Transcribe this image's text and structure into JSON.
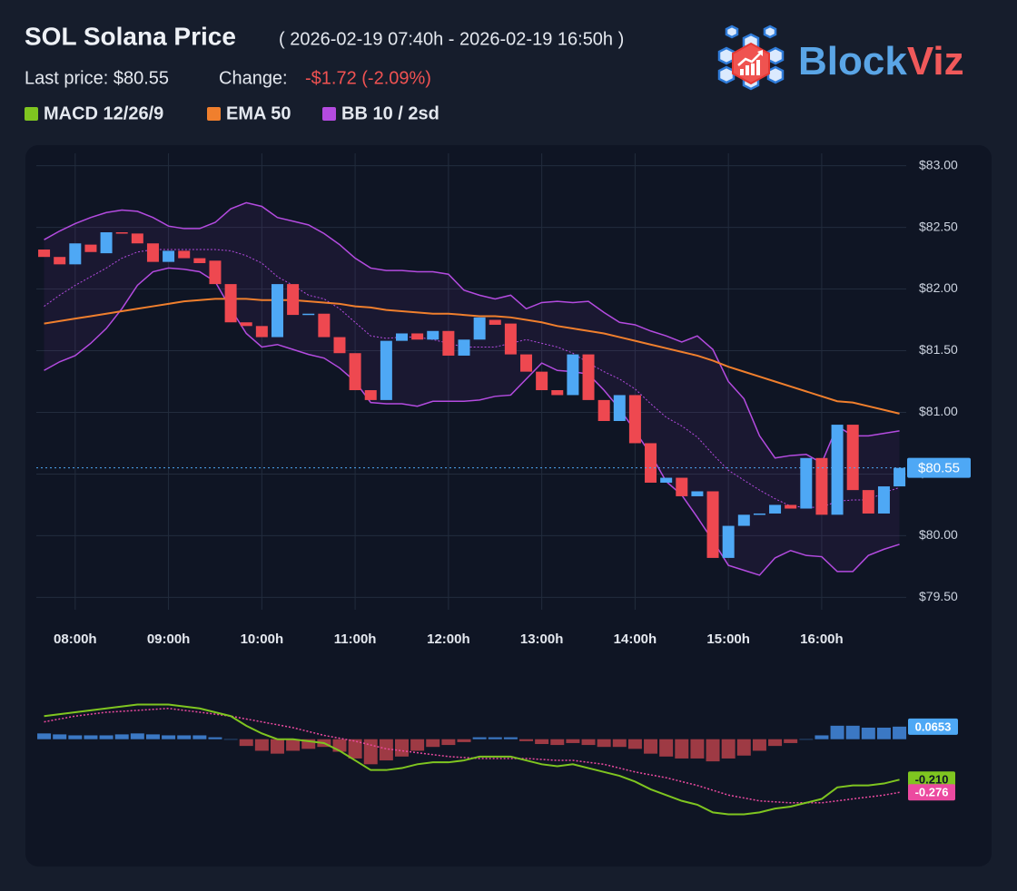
{
  "header": {
    "title": "SOL Solana Price",
    "range": "( 2026-02-19 07:40h - 2026-02-19 16:50h )",
    "last_price": "Last price: $80.55",
    "change_label": "Change:",
    "change": "-$1.72 (-2.09%)"
  },
  "logo": {
    "part1": "Block",
    "part2": "Viz"
  },
  "chart_data": [
    {
      "type": "candlestick",
      "x": [
        460,
        470,
        480,
        490,
        500,
        510,
        520,
        530,
        540,
        550,
        560,
        570,
        580,
        590,
        600,
        610,
        620,
        630,
        640,
        650,
        660,
        670,
        680,
        690,
        700,
        710,
        720,
        730,
        740,
        750,
        760,
        770,
        780,
        790,
        800,
        810,
        820,
        830,
        840,
        850,
        860,
        870,
        880,
        890,
        900,
        910,
        920,
        930,
        940,
        950,
        960,
        970,
        980,
        990,
        1000,
        1010
      ],
      "xlim": [
        455,
        1012
      ],
      "xticks": [
        {
          "value": 480,
          "label": "08:00h"
        },
        {
          "value": 540,
          "label": "09:00h"
        },
        {
          "value": 600,
          "label": "10:00h"
        },
        {
          "value": 660,
          "label": "11:00h"
        },
        {
          "value": 720,
          "label": "12:00h"
        },
        {
          "value": 780,
          "label": "13:00h"
        },
        {
          "value": 840,
          "label": "14:00h"
        },
        {
          "value": 900,
          "label": "15:00h"
        },
        {
          "value": 960,
          "label": "16:00h"
        }
      ],
      "ylim": [
        79.4,
        83.1
      ],
      "yticks": [
        {
          "value": 83,
          "label": "$83.00"
        },
        {
          "value": 82.5,
          "label": "$82.50"
        },
        {
          "value": 82,
          "label": "$82.00"
        },
        {
          "value": 81.5,
          "label": "$81.50"
        },
        {
          "value": 81,
          "label": "$81.00"
        },
        {
          "value": 80.5,
          "label": "$80.50"
        },
        {
          "value": 80,
          "label": "$80.00"
        },
        {
          "value": 79.5,
          "label": "$79.50"
        }
      ],
      "grid": true,
      "up_color": "#4ea8f5",
      "down_color": "#ee4850",
      "open": [
        82.32,
        82.26,
        82.2,
        82.36,
        82.29,
        82.46,
        82.45,
        82.37,
        82.22,
        82.31,
        82.25,
        82.23,
        82.04,
        81.73,
        81.7,
        81.61,
        82.04,
        81.79,
        81.8,
        81.61,
        81.48,
        81.18,
        81.1,
        81.58,
        81.64,
        81.59,
        81.66,
        81.46,
        81.59,
        81.75,
        81.72,
        81.47,
        81.33,
        81.18,
        81.14,
        81.47,
        81.1,
        80.93,
        81.14,
        80.75,
        80.43,
        80.47,
        80.32,
        80.36,
        79.82,
        80.08,
        80.17,
        80.18,
        80.25,
        80.22,
        80.63,
        80.17,
        80.9,
        80.37,
        80.18,
        80.4
      ],
      "close": [
        82.26,
        82.2,
        82.37,
        82.3,
        82.46,
        82.45,
        82.37,
        82.22,
        82.31,
        82.25,
        82.21,
        82.04,
        81.73,
        81.7,
        81.61,
        82.04,
        81.79,
        81.8,
        81.61,
        81.48,
        81.18,
        81.1,
        81.58,
        81.64,
        81.59,
        81.66,
        81.46,
        81.59,
        81.77,
        81.71,
        81.47,
        81.33,
        81.18,
        81.14,
        81.47,
        81.1,
        80.93,
        81.14,
        80.75,
        80.43,
        80.47,
        80.32,
        80.36,
        79.82,
        80.08,
        80.17,
        80.18,
        80.25,
        80.22,
        80.63,
        80.17,
        80.9,
        80.37,
        80.18,
        80.4,
        80.55
      ],
      "ema": {
        "name": "EMA 50",
        "color": "#f07f2d",
        "values": [
          81.72,
          81.74,
          81.76,
          81.78,
          81.8,
          81.82,
          81.84,
          81.86,
          81.88,
          81.9,
          81.91,
          81.92,
          81.92,
          81.92,
          81.91,
          81.91,
          81.91,
          81.9,
          81.89,
          81.88,
          81.86,
          81.85,
          81.83,
          81.82,
          81.81,
          81.8,
          81.8,
          81.79,
          81.78,
          81.78,
          81.77,
          81.75,
          81.73,
          81.7,
          81.68,
          81.66,
          81.64,
          81.61,
          81.58,
          81.55,
          81.52,
          81.49,
          81.46,
          81.42,
          81.37,
          81.33,
          81.29,
          81.25,
          81.21,
          81.17,
          81.13,
          81.09,
          81.08,
          81.05,
          81.02,
          80.99
        ]
      },
      "bollinger": {
        "name": "BB 10 / 2sd",
        "color": "#b44be0",
        "upper": [
          82.4,
          82.47,
          82.53,
          82.58,
          82.62,
          82.64,
          82.63,
          82.58,
          82.51,
          82.49,
          82.49,
          82.54,
          82.65,
          82.7,
          82.67,
          82.58,
          82.55,
          82.52,
          82.45,
          82.36,
          82.25,
          82.17,
          82.15,
          82.15,
          82.14,
          82.14,
          82.12,
          81.99,
          81.95,
          81.92,
          81.95,
          81.84,
          81.89,
          81.9,
          81.89,
          81.9,
          81.81,
          81.73,
          81.71,
          81.66,
          81.62,
          81.57,
          81.62,
          81.51,
          81.25,
          81.11,
          80.81,
          80.63,
          80.65,
          80.66,
          80.59,
          80.89,
          80.81,
          80.81,
          80.83,
          80.85
        ],
        "middle": [
          81.86,
          81.95,
          82.03,
          82.1,
          82.17,
          82.25,
          82.3,
          82.32,
          82.32,
          82.32,
          82.32,
          82.32,
          82.31,
          82.27,
          82.21,
          82.1,
          82.03,
          81.95,
          81.92,
          81.84,
          81.73,
          81.62,
          81.6,
          81.61,
          81.61,
          81.59,
          81.56,
          81.53,
          81.53,
          81.53,
          81.56,
          81.59,
          81.56,
          81.53,
          81.48,
          81.4,
          81.33,
          81.27,
          81.19,
          81.07,
          80.96,
          80.89,
          80.8,
          80.66,
          80.53,
          80.45,
          80.37,
          80.3,
          80.24,
          80.23,
          80.23,
          80.28,
          80.29,
          80.29,
          80.35,
          80.39
        ],
        "lower": [
          81.34,
          81.41,
          81.46,
          81.56,
          81.68,
          81.84,
          82.03,
          82.14,
          82.17,
          82.16,
          82.14,
          82.06,
          81.84,
          81.64,
          81.53,
          81.55,
          81.51,
          81.47,
          81.44,
          81.36,
          81.25,
          81.08,
          81.07,
          81.07,
          81.05,
          81.09,
          81.09,
          81.09,
          81.1,
          81.13,
          81.14,
          81.27,
          81.4,
          81.34,
          81.33,
          81.31,
          81.18,
          81.03,
          80.85,
          80.66,
          80.44,
          80.33,
          80.15,
          79.96,
          79.76,
          79.72,
          79.68,
          79.82,
          79.88,
          79.84,
          79.83,
          79.71,
          79.71,
          79.84,
          79.89,
          79.93
        ]
      },
      "last_price": {
        "value": 80.55,
        "label": "$80.55"
      }
    },
    {
      "type": "macd",
      "name": "MACD 12/26/9",
      "x": [
        460,
        470,
        480,
        490,
        500,
        510,
        520,
        530,
        540,
        550,
        560,
        570,
        580,
        590,
        600,
        610,
        620,
        630,
        640,
        650,
        660,
        670,
        680,
        690,
        700,
        710,
        720,
        730,
        740,
        750,
        760,
        770,
        780,
        790,
        800,
        810,
        820,
        830,
        840,
        850,
        860,
        870,
        880,
        890,
        900,
        910,
        920,
        930,
        940,
        950,
        960,
        970,
        980,
        990,
        1000,
        1010
      ],
      "xlim": [
        455,
        1012
      ],
      "ylim": [
        -0.43,
        0.22
      ],
      "macd": {
        "color": "#7fc520",
        "values": [
          0.12,
          0.13,
          0.14,
          0.15,
          0.16,
          0.17,
          0.18,
          0.18,
          0.18,
          0.17,
          0.16,
          0.14,
          0.12,
          0.07,
          0.03,
          0.0,
          0.0,
          -0.01,
          -0.02,
          -0.06,
          -0.11,
          -0.16,
          -0.16,
          -0.15,
          -0.13,
          -0.12,
          -0.12,
          -0.11,
          -0.09,
          -0.09,
          -0.09,
          -0.11,
          -0.13,
          -0.14,
          -0.13,
          -0.15,
          -0.17,
          -0.19,
          -0.22,
          -0.26,
          -0.29,
          -0.32,
          -0.34,
          -0.38,
          -0.39,
          -0.39,
          -0.38,
          -0.36,
          -0.35,
          -0.33,
          -0.31,
          -0.25,
          -0.24,
          -0.24,
          -0.23,
          -0.21
        ],
        "tag": {
          "value": -0.21,
          "label": "-0.210"
        }
      },
      "signal": {
        "color": "#ec4aa0",
        "values": [
          0.09,
          0.105,
          0.12,
          0.13,
          0.14,
          0.145,
          0.15,
          0.155,
          0.16,
          0.15,
          0.14,
          0.13,
          0.12,
          0.105,
          0.09,
          0.075,
          0.06,
          0.04,
          0.02,
          0.005,
          -0.01,
          -0.03,
          -0.05,
          -0.06,
          -0.07,
          -0.08,
          -0.09,
          -0.095,
          -0.1,
          -0.1,
          -0.1,
          -0.1,
          -0.105,
          -0.11,
          -0.11,
          -0.12,
          -0.13,
          -0.15,
          -0.17,
          -0.185,
          -0.2,
          -0.22,
          -0.24,
          -0.265,
          -0.29,
          -0.305,
          -0.32,
          -0.325,
          -0.33,
          -0.33,
          -0.33,
          -0.32,
          -0.31,
          -0.3,
          -0.29,
          -0.276
        ],
        "tag": {
          "value": -0.276,
          "label": "-0.276"
        }
      },
      "histogram": {
        "up_color": "#3b78c4",
        "down_color": "#9e3a44",
        "values": [
          0.03,
          0.025,
          0.02,
          0.02,
          0.02,
          0.025,
          0.03,
          0.025,
          0.02,
          0.02,
          0.02,
          0.01,
          0.0,
          -0.035,
          -0.06,
          -0.075,
          -0.06,
          -0.05,
          -0.04,
          -0.065,
          -0.1,
          -0.13,
          -0.11,
          -0.09,
          -0.06,
          -0.04,
          -0.03,
          -0.015,
          0.01,
          0.01,
          0.01,
          -0.01,
          -0.025,
          -0.03,
          -0.02,
          -0.03,
          -0.04,
          -0.04,
          -0.05,
          -0.075,
          -0.09,
          -0.1,
          -0.1,
          -0.115,
          -0.1,
          -0.085,
          -0.06,
          -0.035,
          -0.02,
          0.0,
          0.02,
          0.07,
          0.07,
          0.06,
          0.06,
          0.0653
        ],
        "tag": {
          "value": 0.0653,
          "label": "0.0653"
        }
      }
    }
  ]
}
